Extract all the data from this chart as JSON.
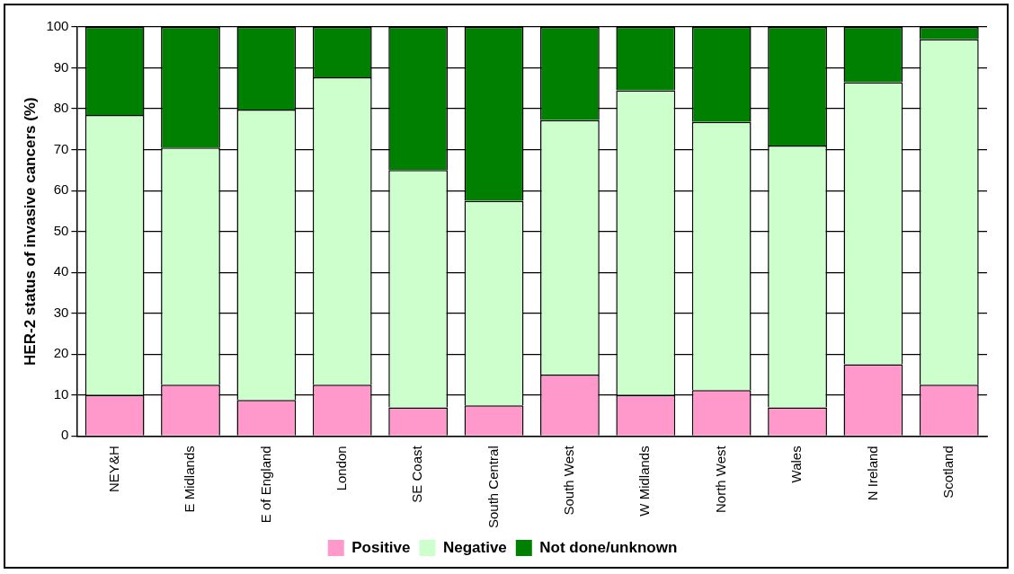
{
  "chart_data": {
    "type": "bar",
    "stacked": true,
    "ylabel": "HER-2 status of invasive cancers (%)",
    "categories": [
      "NEY&H",
      "E Midlands",
      "E of England",
      "London",
      "SE Coast",
      "South Central",
      "South West",
      "W Midlands",
      "North West",
      "Wales",
      "N Ireland",
      "Scotland"
    ],
    "series": [
      {
        "name": "Positive",
        "color": "#ff99cc",
        "values": [
          10,
          12.5,
          8.8,
          12.5,
          7,
          7.5,
          15,
          10,
          11.2,
          7,
          17.5,
          12.5
        ]
      },
      {
        "name": "Negative",
        "color": "#ccffcc",
        "values": [
          68.5,
          58,
          71,
          75.2,
          58,
          50,
          62.2,
          74.5,
          65.6,
          64,
          69,
          84.5
        ]
      },
      {
        "name": "Not done/unknown",
        "color": "#008000",
        "values": [
          21.5,
          29.5,
          20.2,
          12.3,
          35,
          42.5,
          22.8,
          15.5,
          23.2,
          29,
          13.5,
          3
        ]
      }
    ],
    "ylim": [
      0,
      100
    ],
    "yticks": [
      0,
      10,
      20,
      30,
      40,
      50,
      60,
      70,
      80,
      90,
      100
    ],
    "grid": "y",
    "legend": "bottom"
  }
}
